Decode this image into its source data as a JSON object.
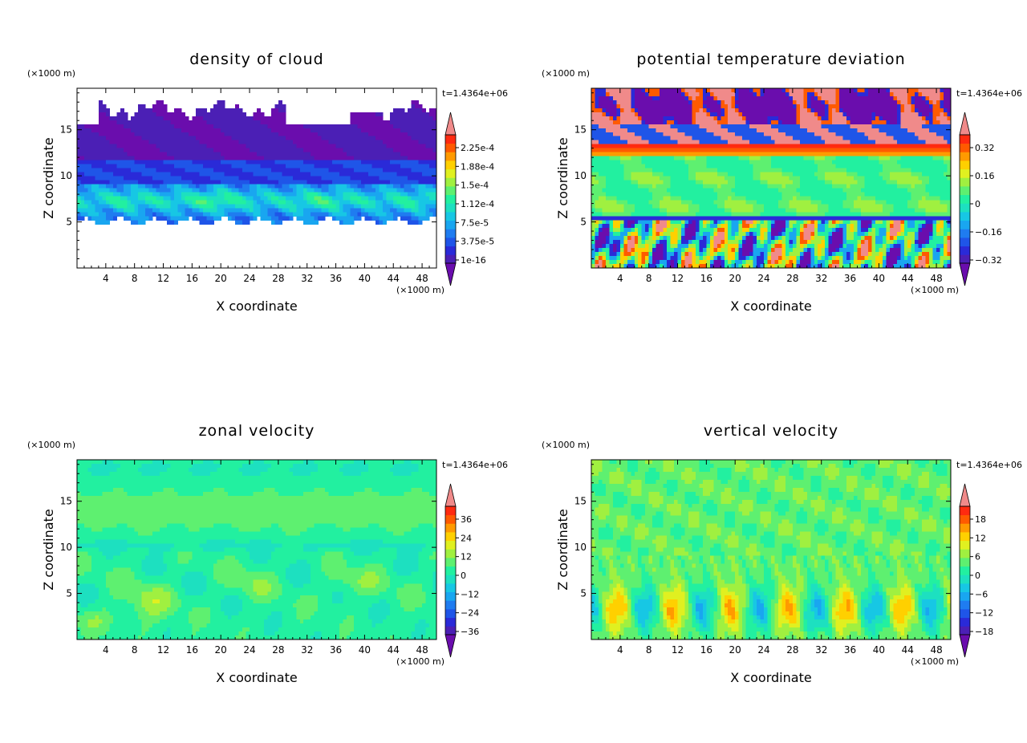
{
  "chart_data": [
    {
      "type": "heatmap",
      "title": "density of cloud",
      "xlabel": "X coordinate",
      "ylabel": "Z coordinate",
      "x_unit": "(×1000 m)",
      "y_unit": "(×1000 m)",
      "time_label": "t=1.4364e+06",
      "xlim": [
        0,
        50
      ],
      "ylim": [
        0,
        19.5
      ],
      "xticks": [
        "4",
        "8",
        "12",
        "16",
        "20",
        "24",
        "28",
        "32",
        "36",
        "40",
        "44",
        "48"
      ],
      "yticks": [
        "5",
        "10",
        "15"
      ],
      "colorbar": {
        "labels": [
          "2.25e-4",
          "1.88e-4",
          "1.5e-4",
          "1.12e-4",
          "7.5e-5",
          "3.75e-5",
          "1e-16"
        ],
        "colors": [
          "#6a0dad",
          "#4b1fb5",
          "#2a2ad8",
          "#1f55e8",
          "#1f7cf0",
          "#19a6f0",
          "#17c7e4",
          "#1de0c0",
          "#22f0a0",
          "#5ef070",
          "#a0f040",
          "#e0f020",
          "#ffd000",
          "#ff9a00",
          "#ff5a00",
          "#ff2a10",
          "#f08a8a"
        ]
      },
      "field": "cloud",
      "series": []
    },
    {
      "type": "heatmap",
      "title": "potential temperature deviation",
      "xlabel": "X coordinate",
      "ylabel": "Z coordinate",
      "x_unit": "(×1000 m)",
      "y_unit": "(×1000 m)",
      "time_label": "t=1.4364e+06",
      "xlim": [
        0,
        50
      ],
      "ylim": [
        0,
        19.5
      ],
      "xticks": [
        "4",
        "8",
        "12",
        "16",
        "20",
        "24",
        "28",
        "32",
        "36",
        "40",
        "44",
        "48"
      ],
      "yticks": [
        "5",
        "10",
        "15"
      ],
      "colorbar": {
        "labels": [
          "0.32",
          "0.16",
          "0",
          "−0.16",
          "−0.32"
        ],
        "colors": [
          "#6a0dad",
          "#4b1fb5",
          "#2a2ad8",
          "#1f55e8",
          "#1f7cf0",
          "#19a6f0",
          "#17c7e4",
          "#1de0c0",
          "#22f0a0",
          "#5ef070",
          "#a0f040",
          "#e0f020",
          "#ffd000",
          "#ff9a00",
          "#ff5a00",
          "#ff2a10",
          "#f08a8a"
        ]
      },
      "field": "theta",
      "series": []
    },
    {
      "type": "heatmap",
      "title": "zonal velocity",
      "xlabel": "X coordinate",
      "ylabel": "Z coordinate",
      "x_unit": "(×1000 m)",
      "y_unit": "(×1000 m)",
      "time_label": "t=1.4364e+06",
      "xlim": [
        0,
        50
      ],
      "ylim": [
        0,
        19.5
      ],
      "xticks": [
        "4",
        "8",
        "12",
        "16",
        "20",
        "24",
        "28",
        "32",
        "36",
        "40",
        "44",
        "48"
      ],
      "yticks": [
        "5",
        "10",
        "15"
      ],
      "colorbar": {
        "labels": [
          "36",
          "24",
          "12",
          "0",
          "−12",
          "−24",
          "−36"
        ],
        "colors": [
          "#6a0dad",
          "#4b1fb5",
          "#2a2ad8",
          "#1f55e8",
          "#1f7cf0",
          "#19a6f0",
          "#17c7e4",
          "#1de0c0",
          "#22f0a0",
          "#5ef070",
          "#a0f040",
          "#e0f020",
          "#ffd000",
          "#ff9a00",
          "#ff5a00",
          "#ff2a10",
          "#f08a8a"
        ]
      },
      "field": "zonal",
      "series": []
    },
    {
      "type": "heatmap",
      "title": "vertical velocity",
      "xlabel": "X coordinate",
      "ylabel": "Z coordinate",
      "x_unit": "(×1000 m)",
      "y_unit": "(×1000 m)",
      "time_label": "t=1.4364e+06",
      "xlim": [
        0,
        50
      ],
      "ylim": [
        0,
        19.5
      ],
      "xticks": [
        "4",
        "8",
        "12",
        "16",
        "20",
        "24",
        "28",
        "32",
        "36",
        "40",
        "44",
        "48"
      ],
      "yticks": [
        "5",
        "10",
        "15"
      ],
      "colorbar": {
        "labels": [
          "18",
          "12",
          "6",
          "0",
          "−6",
          "−12",
          "−18"
        ],
        "colors": [
          "#6a0dad",
          "#4b1fb5",
          "#2a2ad8",
          "#1f55e8",
          "#1f7cf0",
          "#19a6f0",
          "#17c7e4",
          "#1de0c0",
          "#22f0a0",
          "#5ef070",
          "#a0f040",
          "#e0f020",
          "#ffd000",
          "#ff9a00",
          "#ff5a00",
          "#ff2a10",
          "#f08a8a"
        ]
      },
      "field": "vertical",
      "series": []
    }
  ]
}
